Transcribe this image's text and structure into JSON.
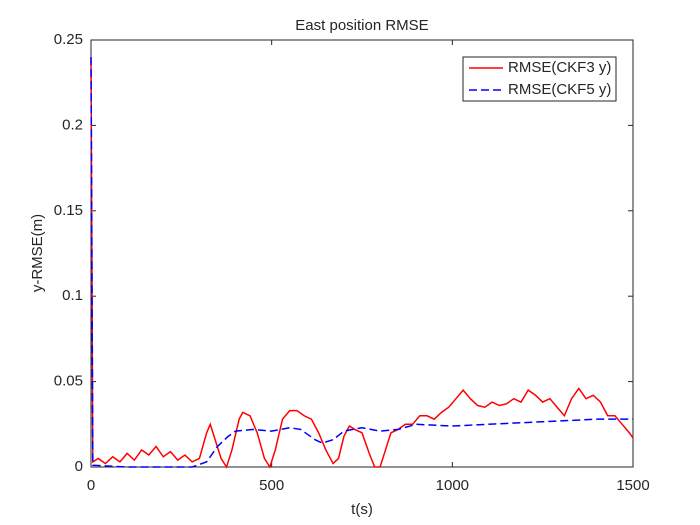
{
  "chart_data": {
    "type": "line",
    "title": "East position RMSE",
    "xlabel": "t(s)",
    "ylabel": "y-RMSE(m)",
    "xlim": [
      0,
      1500
    ],
    "xticks": [
      0,
      500,
      1000,
      1500
    ],
    "ylim": [
      0,
      0.25
    ],
    "yticks": [
      0,
      0.05,
      0.1,
      0.15,
      0.2,
      0.25
    ],
    "legend": "northeast",
    "series": [
      {
        "name": "RMSE(CKF3 y)",
        "color": "#ff0000",
        "dash": "solid",
        "x": [
          0,
          5,
          20,
          40,
          60,
          80,
          100,
          120,
          140,
          160,
          180,
          200,
          220,
          240,
          260,
          280,
          300,
          320,
          330,
          345,
          360,
          375,
          390,
          410,
          420,
          440,
          460,
          480,
          495,
          510,
          530,
          550,
          570,
          590,
          610,
          630,
          650,
          670,
          685,
          700,
          715,
          730,
          750,
          770,
          785,
          800,
          815,
          830,
          850,
          870,
          890,
          910,
          930,
          950,
          970,
          990,
          1010,
          1030,
          1050,
          1070,
          1090,
          1110,
          1130,
          1150,
          1170,
          1190,
          1210,
          1230,
          1250,
          1270,
          1290,
          1310,
          1330,
          1350,
          1370,
          1390,
          1410,
          1430,
          1450,
          1470,
          1490,
          1500
        ],
        "values": [
          0.24,
          0.003,
          0.005,
          0.002,
          0.006,
          0.003,
          0.008,
          0.004,
          0.01,
          0.007,
          0.012,
          0.006,
          0.009,
          0.004,
          0.007,
          0.003,
          0.005,
          0.02,
          0.025,
          0.015,
          0.005,
          0.0,
          0.01,
          0.028,
          0.032,
          0.03,
          0.02,
          0.005,
          0.0,
          0.01,
          0.028,
          0.033,
          0.033,
          0.03,
          0.028,
          0.02,
          0.01,
          0.002,
          0.005,
          0.018,
          0.024,
          0.022,
          0.02,
          0.008,
          0.0,
          0.0,
          0.01,
          0.02,
          0.022,
          0.025,
          0.025,
          0.03,
          0.03,
          0.028,
          0.032,
          0.035,
          0.04,
          0.045,
          0.04,
          0.036,
          0.035,
          0.038,
          0.036,
          0.037,
          0.04,
          0.038,
          0.045,
          0.042,
          0.038,
          0.04,
          0.035,
          0.03,
          0.04,
          0.046,
          0.04,
          0.042,
          0.038,
          0.03,
          0.03,
          0.025,
          0.02,
          0.017
        ]
      },
      {
        "name": "RMSE(CKF5 y)",
        "color": "#0000ff",
        "dash": "dashed",
        "x": [
          0,
          5,
          100,
          200,
          280,
          320,
          350,
          380,
          400,
          450,
          500,
          550,
          580,
          620,
          640,
          670,
          700,
          750,
          800,
          850,
          900,
          1000,
          1100,
          1200,
          1300,
          1400,
          1500
        ],
        "values": [
          0.24,
          0.001,
          0.0,
          0.0,
          0.0,
          0.003,
          0.012,
          0.018,
          0.021,
          0.022,
          0.021,
          0.023,
          0.022,
          0.016,
          0.014,
          0.016,
          0.021,
          0.023,
          0.021,
          0.022,
          0.025,
          0.024,
          0.025,
          0.026,
          0.027,
          0.028,
          0.028
        ]
      }
    ]
  }
}
